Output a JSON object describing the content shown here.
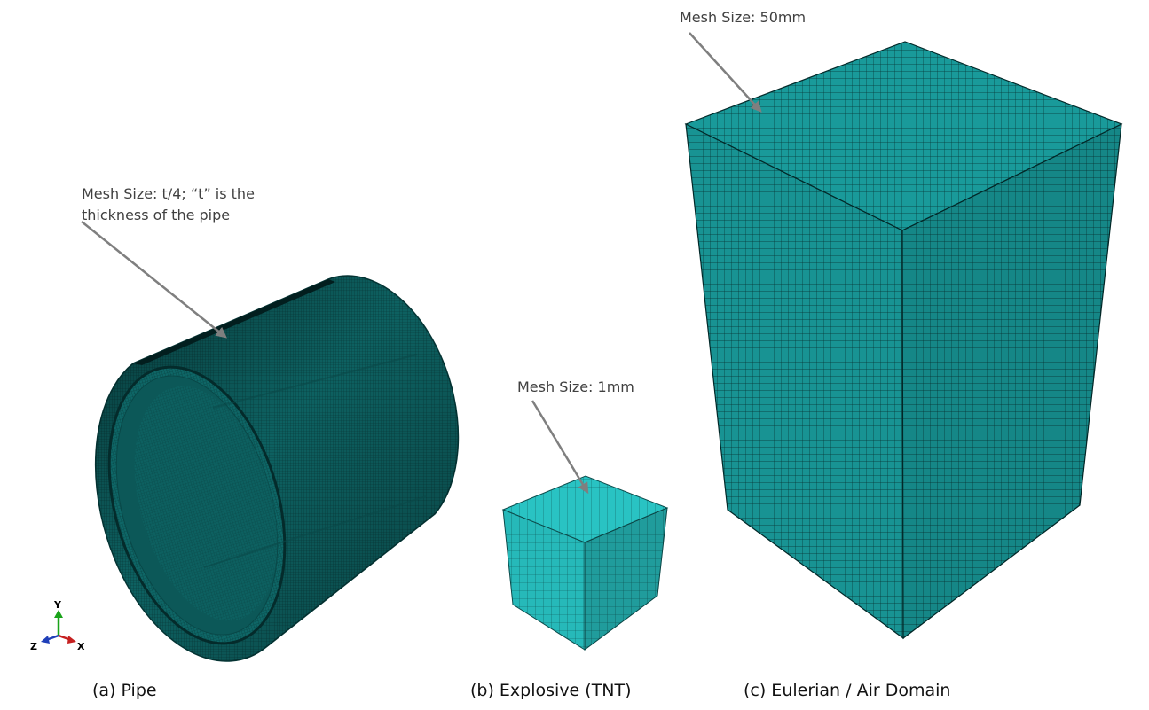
{
  "pipe": {
    "annotation_line1": "Mesh Size: t/4; “t” is the",
    "annotation_line2": "thickness of the pipe",
    "caption": "(a) Pipe"
  },
  "explosive": {
    "annotation": "Mesh Size: 1mm",
    "caption": "(b) Explosive (TNT)"
  },
  "air_domain": {
    "annotation": "Mesh Size: 50mm",
    "caption": "(c) Eulerian / Air Domain"
  },
  "triad": {
    "y": "Y",
    "z": "Z",
    "x": "X"
  },
  "colors": {
    "pipe_mesh": "#0b5d5d",
    "tnt_mesh": "#22b8b8",
    "air_mesh": "#179393",
    "annotation_line": "#7f7f7f"
  }
}
